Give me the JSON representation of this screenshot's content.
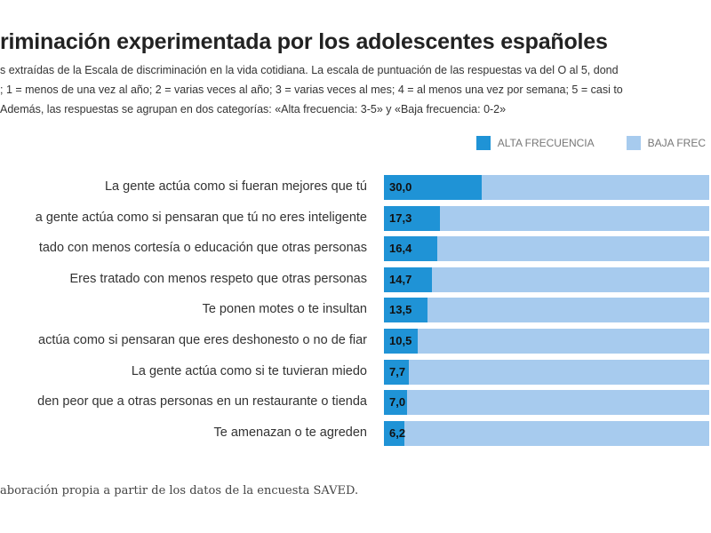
{
  "chart_data": {
    "type": "bar",
    "orientation": "horizontal",
    "stacked": true,
    "title": "riminación experimentada por los adolescentes españoles",
    "subtitle": [
      "s extraídas de la Escala de discriminación en la vida cotidiana. La escala de puntuación de las respuestas va del O al 5, dond",
      "; 1 = menos de una vez al año; 2 = varias veces al año; 3 = varias veces al mes; 4 = al menos una vez por semana; 5 = casi to",
      "Además, las respuestas se agrupan en dos categorías: «Alta frecuencia: 3-5» y «Baja frecuencia: 0-2»"
    ],
    "categories": [
      "La gente actúa como si fueran mejores que tú",
      "a gente actúa como si pensaran que tú no eres inteligente",
      "tado con menos cortesía o educación que otras personas",
      "Eres tratado con menos respeto que otras personas",
      "Te ponen motes o te insultan",
      "actúa como si pensaran que eres deshonesto o no de fiar",
      "La gente actúa como si te tuvieran miedo",
      "den peor que a otras personas en un restaurante o tienda",
      "Te amenazan o te agreden"
    ],
    "series": [
      {
        "name": "ALTA FRECUENCIA",
        "color": "#1f93d6",
        "values": [
          30.0,
          17.3,
          16.4,
          14.7,
          13.5,
          10.5,
          7.7,
          7.0,
          6.2
        ],
        "labels": [
          "30,0",
          "17,3",
          "16,4",
          "14,7",
          "13,5",
          "10,5",
          "7,7",
          "7,0",
          "6,2"
        ]
      },
      {
        "name": "BAJA FREC",
        "color": "#a7cbee",
        "values": [
          70.0,
          82.7,
          83.6,
          85.3,
          86.5,
          89.5,
          92.3,
          93.0,
          93.8
        ]
      }
    ],
    "xlim": [
      0,
      100
    ],
    "legend_position": "top-right",
    "grid": false
  },
  "footer": "aboración propia a partir de los datos de la encuesta SAVED."
}
